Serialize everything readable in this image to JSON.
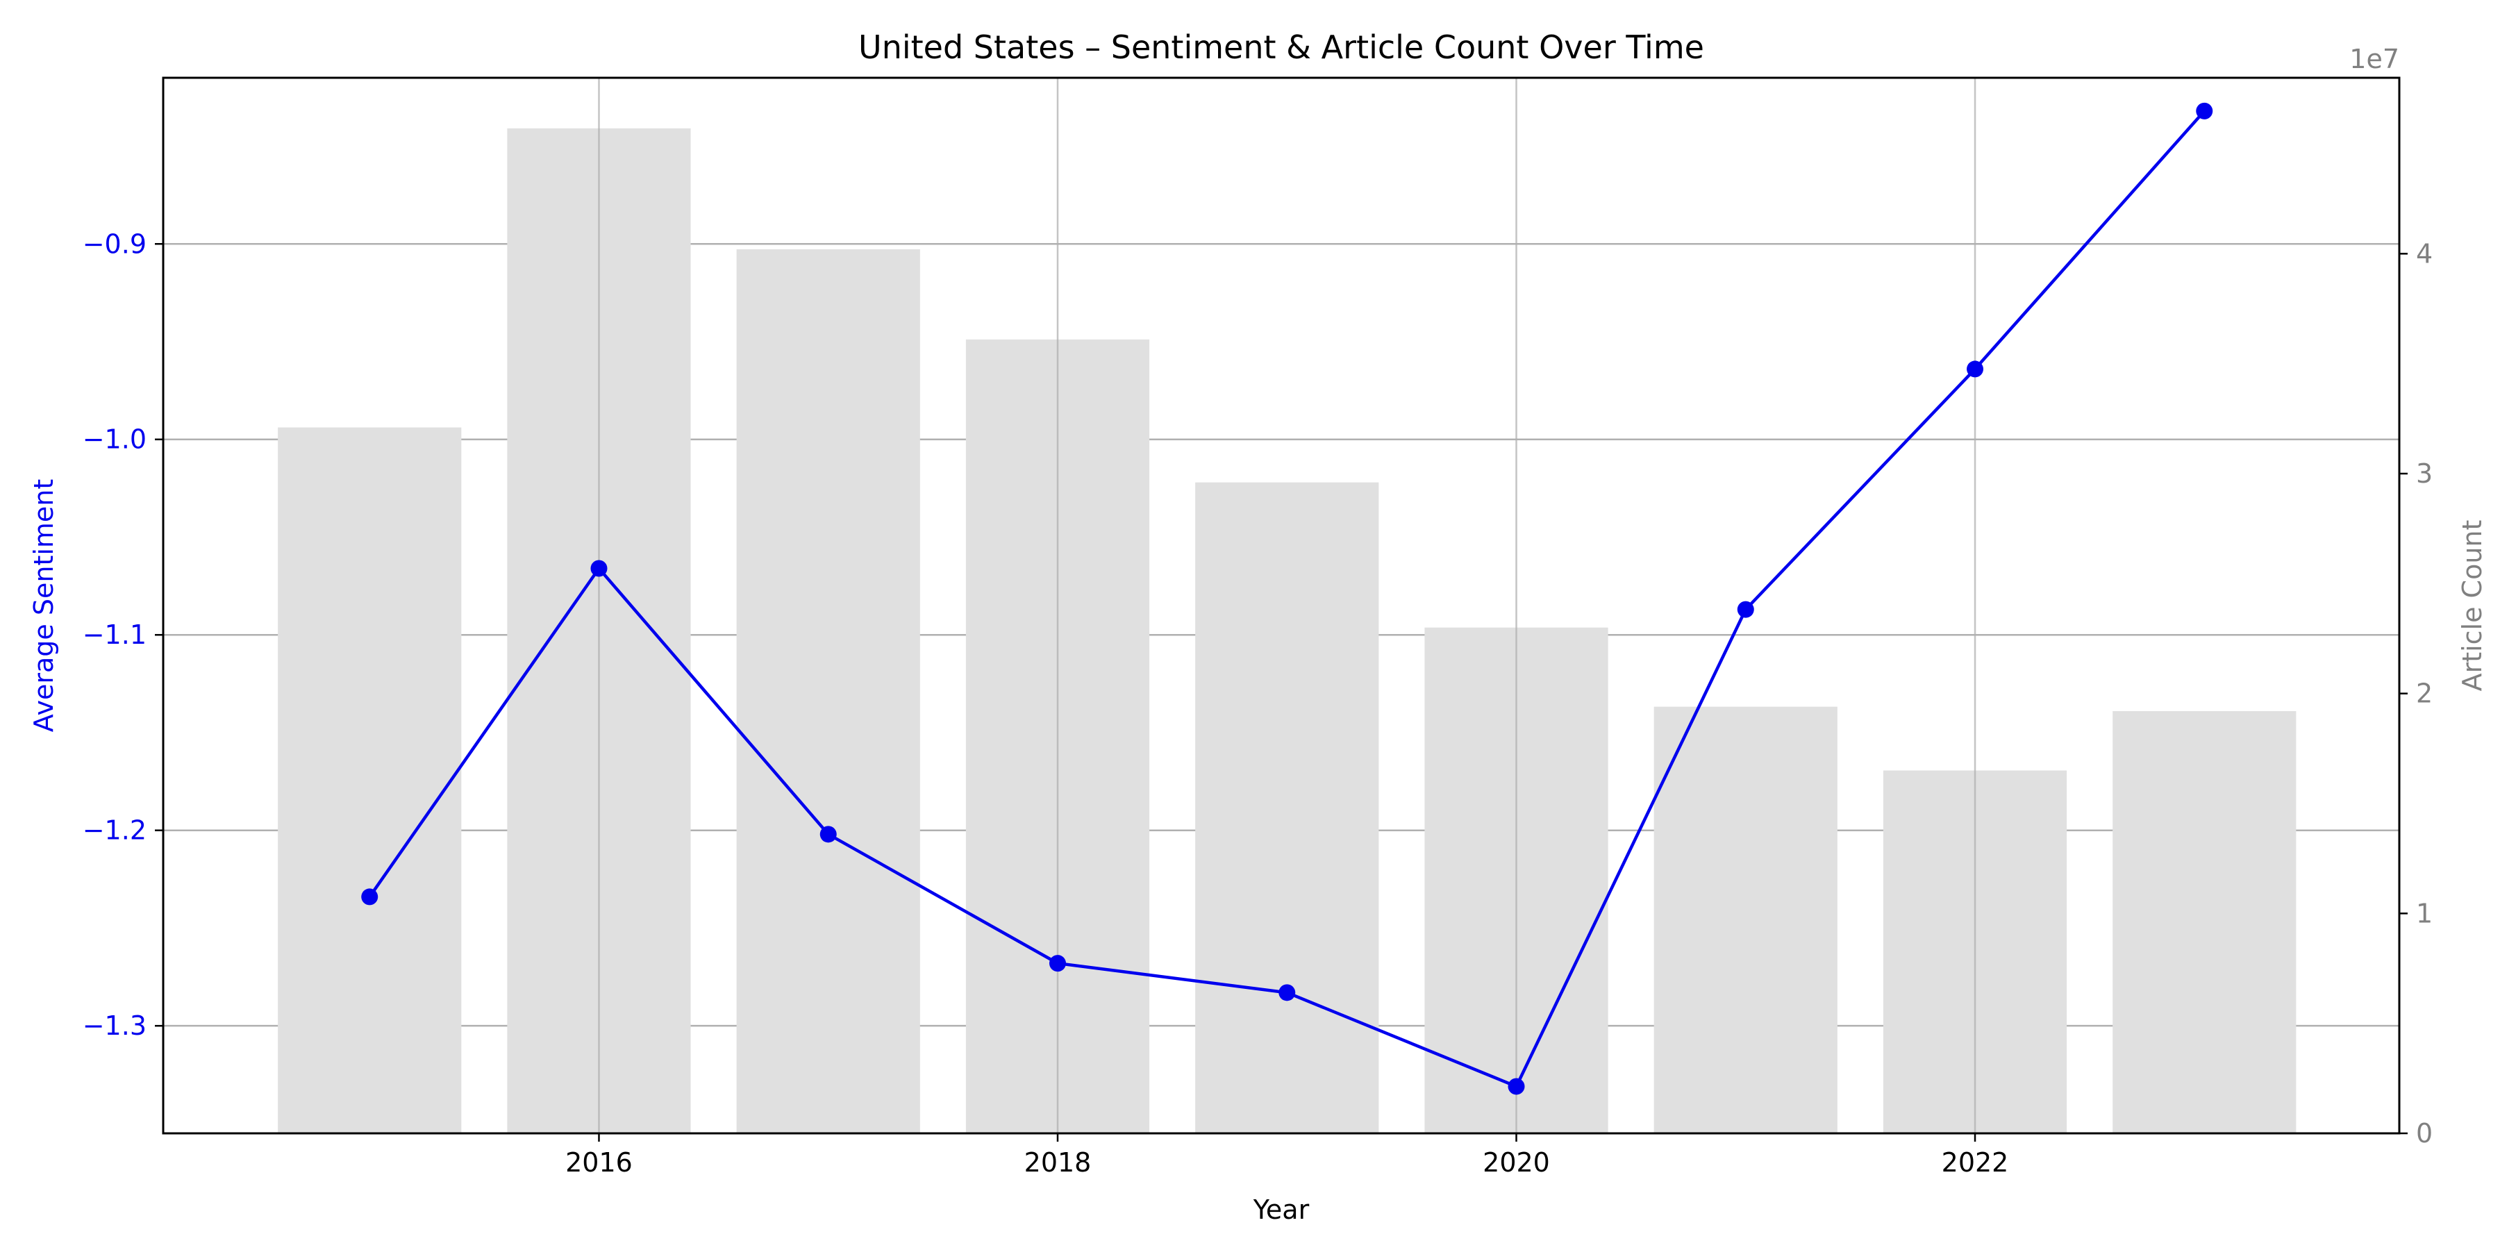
{
  "chart_data": {
    "type": "bar",
    "title": "United States – Sentiment & Article Count Over Time",
    "xlabel": "Year",
    "x": [
      2015,
      2016,
      2017,
      2018,
      2019,
      2020,
      2021,
      2022,
      2023
    ],
    "xticks": [
      "2016",
      "2018",
      "2020",
      "2022"
    ],
    "xlim": [
      2014.1,
      2023.85
    ],
    "grid": true,
    "left_axis": {
      "label": "Average Sentiment",
      "ylim": [
        -1.355,
        -0.815
      ],
      "ticks": [
        "−0.9",
        "−1.0",
        "−1.1",
        "−1.2",
        "−1.3"
      ],
      "tick_values": [
        -0.9,
        -1.0,
        -1.1,
        -1.2,
        -1.3
      ],
      "color": "#0000ee"
    },
    "right_axis": {
      "label": "Article Count",
      "offset_text": "1e7",
      "ylim": [
        0,
        4.8
      ],
      "ticks": [
        "0",
        "1",
        "2",
        "3",
        "4"
      ],
      "tick_values": [
        0,
        1,
        2,
        3,
        4
      ],
      "color": "#808080"
    },
    "series": [
      {
        "type": "bar",
        "axis": "right",
        "color": "#e0e0e0",
        "values": [
          3.21,
          4.57,
          4.02,
          3.61,
          2.96,
          2.3,
          1.94,
          1.65,
          1.92
        ]
      },
      {
        "type": "line",
        "axis": "left",
        "color": "#0000ee",
        "values": [
          -1.234,
          -1.066,
          -1.202,
          -1.268,
          -1.283,
          -1.331,
          -1.087,
          -0.964,
          -0.832
        ]
      }
    ]
  }
}
